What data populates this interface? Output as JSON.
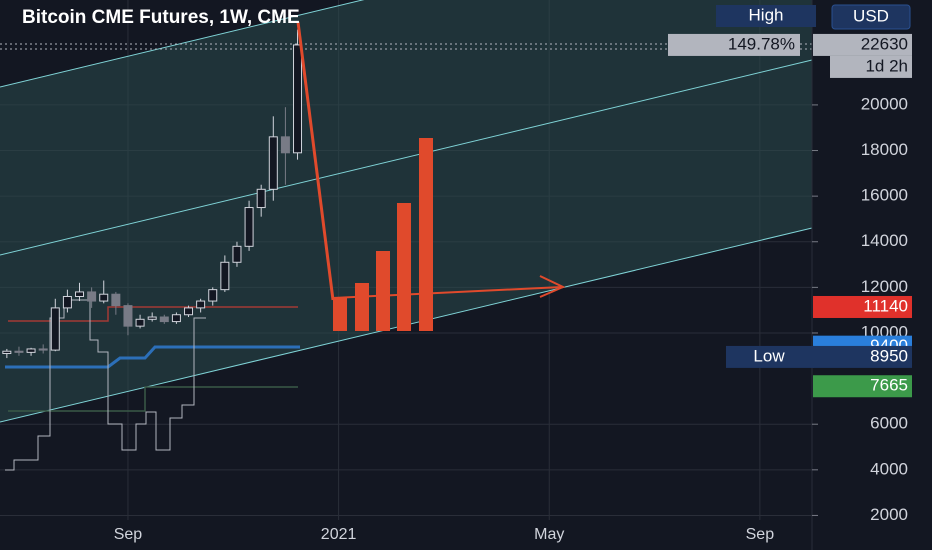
{
  "chart_data": {
    "type": "candlestick",
    "title": "Bitcoin CME Futures, 1W, CME",
    "currency": "USD",
    "xlim": [
      5.57,
      20.99
    ],
    "xticks": [
      {
        "value": 8,
        "label": "Sep"
      },
      {
        "value": 12,
        "label": "2021"
      },
      {
        "value": 16,
        "label": "May"
      },
      {
        "value": 20,
        "label": "Sep"
      }
    ],
    "ylim": [
      1800,
      24600
    ],
    "yticks": [
      2000,
      4000,
      6000,
      10000,
      12000,
      14000,
      16000,
      18000,
      20000
    ],
    "grid": true,
    "x": [
      5.7,
      5.93,
      6.16,
      6.39,
      6.62,
      6.85,
      7.08,
      7.31,
      7.54,
      7.77,
      8.0,
      8.23,
      8.46,
      8.69,
      8.92,
      9.15,
      9.38,
      9.61,
      9.84,
      10.07,
      10.3,
      10.53,
      10.76,
      10.99,
      11.22
    ],
    "ohlc": [
      [
        9100,
        9300,
        8900,
        9200
      ],
      [
        9200,
        9400,
        9000,
        9150
      ],
      [
        9150,
        9350,
        9000,
        9300
      ],
      [
        9300,
        9500,
        9100,
        9250
      ],
      [
        9250,
        11500,
        9200,
        11100
      ],
      [
        11100,
        11900,
        10900,
        11600
      ],
      [
        11600,
        12200,
        11400,
        11800
      ],
      [
        11800,
        12000,
        11100,
        11400
      ],
      [
        11400,
        12300,
        11300,
        11700
      ],
      [
        11700,
        11800,
        10800,
        11200
      ],
      [
        11200,
        11300,
        9900,
        10300
      ],
      [
        10300,
        10800,
        10200,
        10600
      ],
      [
        10600,
        10900,
        10500,
        10700
      ],
      [
        10700,
        10800,
        10400,
        10500
      ],
      [
        10500,
        10900,
        10400,
        10800
      ],
      [
        10800,
        11200,
        10700,
        11100
      ],
      [
        11100,
        11500,
        10900,
        11400
      ],
      [
        11400,
        12000,
        11200,
        11900
      ],
      [
        11900,
        13400,
        11800,
        13100
      ],
      [
        13100,
        14000,
        12900,
        13800
      ],
      [
        13800,
        15800,
        13600,
        15500
      ],
      [
        15500,
        16500,
        15100,
        16300
      ],
      [
        16300,
        19500,
        15800,
        18600
      ],
      [
        18600,
        19900,
        16500,
        17900
      ],
      [
        17900,
        23300,
        17600,
        22630
      ]
    ],
    "up_color": "#d1d4dc",
    "down_color": "#787b86",
    "price_labels": [
      {
        "value": 22630,
        "color": "#b2b5be",
        "text_color": "#131722",
        "tag": "149.78%",
        "sub": "1d 2h"
      },
      {
        "value": 11140,
        "color": "#e0312b",
        "text_color": "#ffffff"
      },
      {
        "value": 9400,
        "color": "#2a7fdc",
        "text_color": "#ffffff"
      },
      {
        "value": 8950,
        "color": "#1e3560",
        "text_color": "#ffffff",
        "tag": "Low"
      },
      {
        "value": 7665,
        "color": "#3c9a4a",
        "text_color": "#ffffff"
      }
    ],
    "high_label": "High"
  }
}
